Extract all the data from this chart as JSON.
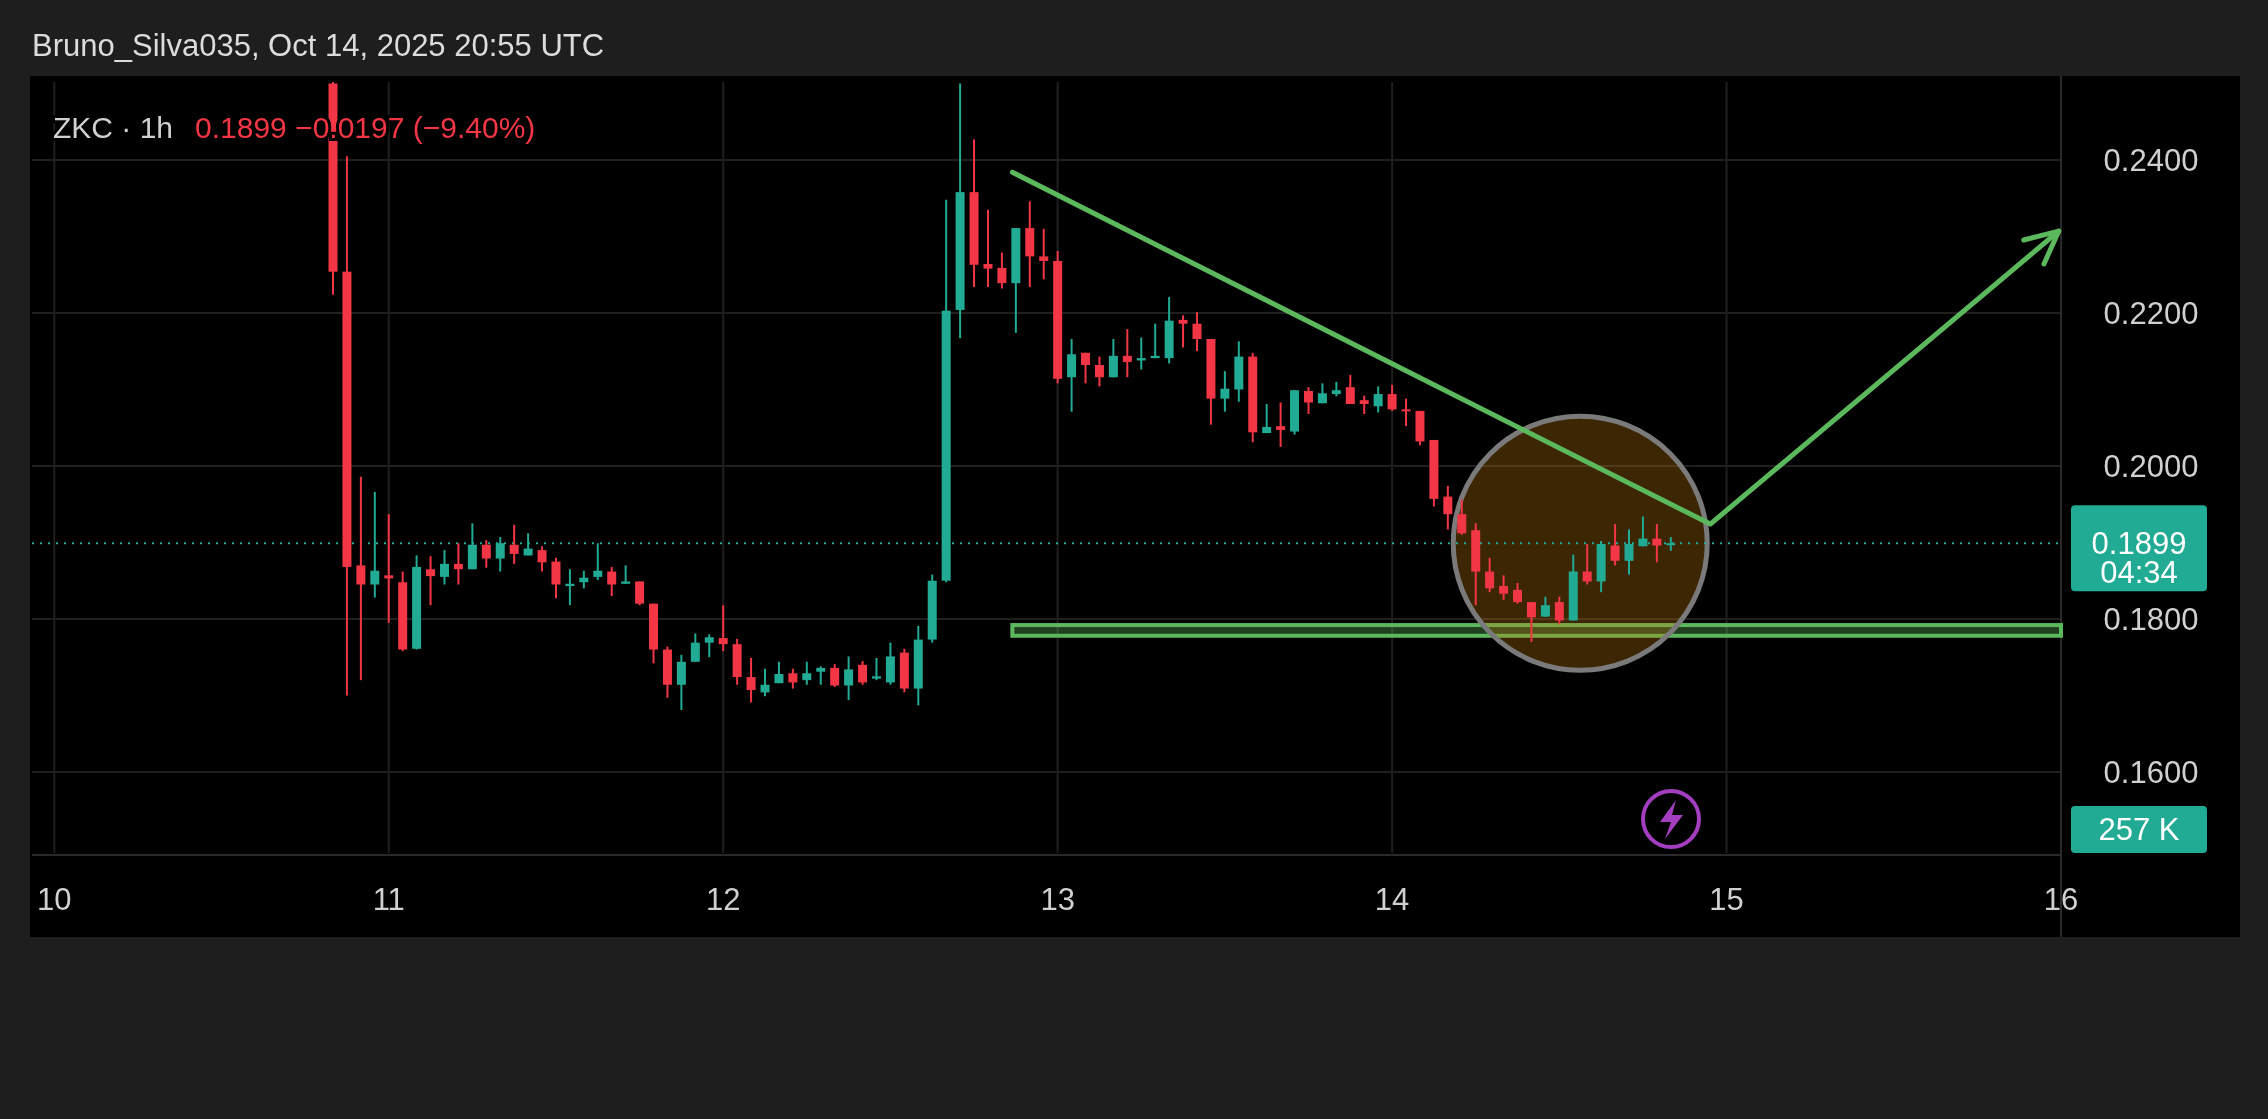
{
  "chart_data": {
    "type": "candlestick",
    "title": "ZKC · 1h",
    "subtitle": "0.1899  −0.0197 (−9.40%)",
    "annotations": [
      "Bruno_Silva035, Oct 14, 2025 20:55 UTC",
      "04:34",
      "257 K"
    ],
    "xlim": [
      "2025-10-09T22:24",
      "2025-10-16T00:00"
    ],
    "xticks": [
      {
        "value": "2025-10-10",
        "label": "10"
      },
      {
        "value": "2025-10-11",
        "label": "11"
      },
      {
        "value": "2025-10-12",
        "label": "12"
      },
      {
        "value": "2025-10-13",
        "label": "13"
      },
      {
        "value": "2025-10-14",
        "label": "14"
      },
      {
        "value": "2025-10-15",
        "label": "15"
      },
      {
        "value": "2025-10-16",
        "label": "16"
      }
    ],
    "ylim": [
      0.1494,
      0.2502
    ],
    "yticks": [
      {
        "value": 0.16,
        "label": "0.1600"
      },
      {
        "value": 0.18,
        "label": "0.1800"
      },
      {
        "value": 0.2,
        "label": "0.2000"
      },
      {
        "value": 0.22,
        "label": "0.2200"
      },
      {
        "value": 0.24,
        "label": "0.2400"
      }
    ],
    "grid": true,
    "ref_lines": [
      {
        "axis": "y",
        "value": 0.1899,
        "label": "0.1899",
        "color": "#22ab94",
        "line_style": "dotted"
      }
    ],
    "bands": [
      {
        "axis": "y",
        "from": 0.1778,
        "to": 0.1792,
        "color": "#5cb85c"
      }
    ],
    "series": [
      {
        "x": [
          "2025-10-10T20:00",
          "2025-10-10T21:00",
          "2025-10-10T22:00",
          "2025-10-10T23:00",
          "2025-10-11T00:00",
          "2025-10-11T01:00",
          "2025-10-11T02:00",
          "2025-10-11T03:00",
          "2025-10-11T04:00",
          "2025-10-11T05:00",
          "2025-10-11T06:00",
          "2025-10-11T07:00",
          "2025-10-11T08:00",
          "2025-10-11T09:00",
          "2025-10-11T10:00",
          "2025-10-11T11:00",
          "2025-10-11T12:00",
          "2025-10-11T13:00",
          "2025-10-11T14:00",
          "2025-10-11T15:00",
          "2025-10-11T16:00",
          "2025-10-11T17:00",
          "2025-10-11T18:00",
          "2025-10-11T19:00",
          "2025-10-11T20:00",
          "2025-10-11T21:00",
          "2025-10-11T22:00",
          "2025-10-11T23:00",
          "2025-10-12T00:00",
          "2025-10-12T01:00",
          "2025-10-12T02:00",
          "2025-10-12T03:00",
          "2025-10-12T04:00",
          "2025-10-12T05:00",
          "2025-10-12T06:00",
          "2025-10-12T07:00",
          "2025-10-12T08:00",
          "2025-10-12T09:00",
          "2025-10-12T10:00",
          "2025-10-12T11:00",
          "2025-10-12T12:00",
          "2025-10-12T13:00",
          "2025-10-12T14:00",
          "2025-10-12T15:00",
          "2025-10-12T16:00",
          "2025-10-12T17:00",
          "2025-10-12T18:00",
          "2025-10-12T19:00",
          "2025-10-12T20:00",
          "2025-10-12T21:00",
          "2025-10-12T22:00",
          "2025-10-12T23:00",
          "2025-10-13T00:00",
          "2025-10-13T01:00",
          "2025-10-13T02:00",
          "2025-10-13T03:00",
          "2025-10-13T04:00",
          "2025-10-13T05:00",
          "2025-10-13T06:00",
          "2025-10-13T07:00",
          "2025-10-13T08:00",
          "2025-10-13T09:00",
          "2025-10-13T10:00",
          "2025-10-13T11:00",
          "2025-10-13T12:00",
          "2025-10-13T13:00",
          "2025-10-13T14:00",
          "2025-10-13T15:00",
          "2025-10-13T16:00",
          "2025-10-13T17:00",
          "2025-10-13T18:00",
          "2025-10-13T19:00",
          "2025-10-13T20:00",
          "2025-10-13T21:00",
          "2025-10-13T22:00",
          "2025-10-13T23:00",
          "2025-10-14T00:00",
          "2025-10-14T01:00",
          "2025-10-14T02:00",
          "2025-10-14T03:00",
          "2025-10-14T04:00",
          "2025-10-14T05:00",
          "2025-10-14T06:00",
          "2025-10-14T07:00",
          "2025-10-14T08:00",
          "2025-10-14T09:00",
          "2025-10-14T10:00",
          "2025-10-14T11:00",
          "2025-10-14T12:00",
          "2025-10-14T13:00",
          "2025-10-14T14:00",
          "2025-10-14T15:00",
          "2025-10-14T16:00",
          "2025-10-14T17:00",
          "2025-10-14T18:00",
          "2025-10-14T19:00",
          "2025-10-14T20:00"
        ],
        "ohlc": [
          [
            0.25,
            0.2502,
            0.2224,
            0.2254
          ],
          [
            0.2254,
            0.2405,
            0.17,
            0.1868
          ],
          [
            0.187,
            0.1986,
            0.172,
            0.1845
          ],
          [
            0.1845,
            0.1966,
            0.1828,
            0.1863
          ],
          [
            0.1857,
            0.1937,
            0.1795,
            0.1853
          ],
          [
            0.1848,
            0.1862,
            0.1758,
            0.176
          ],
          [
            0.1761,
            0.1883,
            0.176,
            0.1868
          ],
          [
            0.1865,
            0.1882,
            0.1818,
            0.1856
          ],
          [
            0.1855,
            0.189,
            0.1845,
            0.1872
          ],
          [
            0.1872,
            0.1899,
            0.1845,
            0.1865
          ],
          [
            0.1865,
            0.1925,
            0.1865,
            0.1897
          ],
          [
            0.1897,
            0.1903,
            0.1867,
            0.1879
          ],
          [
            0.1879,
            0.1907,
            0.1862,
            0.1899
          ],
          [
            0.1897,
            0.1923,
            0.1872,
            0.1885
          ],
          [
            0.1883,
            0.1912,
            0.1883,
            0.1892
          ],
          [
            0.189,
            0.1895,
            0.1862,
            0.1874
          ],
          [
            0.1875,
            0.188,
            0.1827,
            0.1845
          ],
          [
            0.1843,
            0.1865,
            0.1818,
            0.1846
          ],
          [
            0.1848,
            0.1863,
            0.184,
            0.1854
          ],
          [
            0.1855,
            0.1899,
            0.1851,
            0.1863
          ],
          [
            0.1862,
            0.1868,
            0.183,
            0.1845
          ],
          [
            0.1846,
            0.187,
            0.1846,
            0.1849
          ],
          [
            0.1849,
            0.1849,
            0.1818,
            0.182
          ],
          [
            0.182,
            0.182,
            0.1742,
            0.176
          ],
          [
            0.176,
            0.1764,
            0.1697,
            0.1714
          ],
          [
            0.1714,
            0.1753,
            0.1681,
            0.1744
          ],
          [
            0.1744,
            0.1781,
            0.1744,
            0.1769
          ],
          [
            0.1769,
            0.178,
            0.175,
            0.1776
          ],
          [
            0.1775,
            0.1818,
            0.1758,
            0.1767
          ],
          [
            0.1767,
            0.1774,
            0.1714,
            0.1724
          ],
          [
            0.1724,
            0.1749,
            0.1691,
            0.1707
          ],
          [
            0.1704,
            0.1735,
            0.1699,
            0.1714
          ],
          [
            0.1716,
            0.1744,
            0.1716,
            0.1728
          ],
          [
            0.1729,
            0.1735,
            0.1709,
            0.1717
          ],
          [
            0.172,
            0.1744,
            0.1714,
            0.1729
          ],
          [
            0.1731,
            0.1738,
            0.1714,
            0.1736
          ],
          [
            0.1736,
            0.1741,
            0.1711,
            0.1713
          ],
          [
            0.1713,
            0.1751,
            0.1694,
            0.1734
          ],
          [
            0.174,
            0.1745,
            0.1714,
            0.1717
          ],
          [
            0.1722,
            0.1749,
            0.172,
            0.1725
          ],
          [
            0.1717,
            0.1769,
            0.1714,
            0.1751
          ],
          [
            0.1756,
            0.1761,
            0.1704,
            0.1709
          ],
          [
            0.1709,
            0.1791,
            0.1687,
            0.1773
          ],
          [
            0.1773,
            0.1858,
            0.1769,
            0.185
          ],
          [
            0.185,
            0.2348,
            0.1848,
            0.2203
          ],
          [
            0.2204,
            0.25,
            0.2167,
            0.2358
          ],
          [
            0.2358,
            0.2427,
            0.2234,
            0.2263
          ],
          [
            0.2264,
            0.2335,
            0.2234,
            0.2258
          ],
          [
            0.2259,
            0.2279,
            0.2232,
            0.2239
          ],
          [
            0.2239,
            0.2311,
            0.2174,
            0.2311
          ],
          [
            0.2311,
            0.2346,
            0.2234,
            0.2274
          ],
          [
            0.2274,
            0.231,
            0.2244,
            0.2268
          ],
          [
            0.2268,
            0.2281,
            0.2108,
            0.2114
          ],
          [
            0.2116,
            0.2166,
            0.2071,
            0.2146
          ],
          [
            0.2148,
            0.2148,
            0.2108,
            0.2132
          ],
          [
            0.2132,
            0.2143,
            0.2104,
            0.2116
          ],
          [
            0.2116,
            0.2166,
            0.2116,
            0.2144
          ],
          [
            0.2144,
            0.2179,
            0.2116,
            0.2136
          ],
          [
            0.2138,
            0.2168,
            0.2126,
            0.2141
          ],
          [
            0.2141,
            0.2186,
            0.2141,
            0.2144
          ],
          [
            0.2141,
            0.2221,
            0.2134,
            0.219
          ],
          [
            0.2191,
            0.2197,
            0.2155,
            0.2186
          ],
          [
            0.2186,
            0.2201,
            0.215,
            0.2166
          ],
          [
            0.2166,
            0.2166,
            0.2054,
            0.2088
          ],
          [
            0.2088,
            0.2124,
            0.2071,
            0.2101
          ],
          [
            0.21,
            0.2163,
            0.2084,
            0.2143
          ],
          [
            0.2143,
            0.2148,
            0.2031,
            0.2044
          ],
          [
            0.2043,
            0.2081,
            0.2043,
            0.2051
          ],
          [
            0.2052,
            0.2083,
            0.2025,
            0.2047
          ],
          [
            0.2045,
            0.2099,
            0.2041,
            0.2099
          ],
          [
            0.2098,
            0.2103,
            0.2068,
            0.2083
          ],
          [
            0.2082,
            0.2108,
            0.2082,
            0.2095
          ],
          [
            0.2094,
            0.211,
            0.2091,
            0.2099
          ],
          [
            0.2103,
            0.2119,
            0.2081,
            0.2081
          ],
          [
            0.2086,
            0.2092,
            0.2068,
            0.2081
          ],
          [
            0.2078,
            0.2104,
            0.207,
            0.2094
          ],
          [
            0.2094,
            0.2106,
            0.2072,
            0.2074
          ],
          [
            0.2074,
            0.2088,
            0.2052,
            0.2072
          ],
          [
            0.2072,
            0.2072,
            0.2027,
            0.2032
          ],
          [
            0.2034,
            0.2034,
            0.1947,
            0.1957
          ],
          [
            0.196,
            0.1974,
            0.1917,
            0.1937
          ],
          [
            0.1937,
            0.1956,
            0.191,
            0.1912
          ],
          [
            0.1916,
            0.1925,
            0.1818,
            0.1862
          ],
          [
            0.1862,
            0.188,
            0.1835,
            0.184
          ],
          [
            0.1843,
            0.1857,
            0.1825,
            0.1833
          ],
          [
            0.1838,
            0.1847,
            0.182,
            0.1822
          ],
          [
            0.1822,
            0.1822,
            0.177,
            0.1802
          ],
          [
            0.1803,
            0.1829,
            0.1803,
            0.1818
          ],
          [
            0.1822,
            0.1829,
            0.1793,
            0.1798
          ],
          [
            0.1798,
            0.1884,
            0.1798,
            0.1862
          ],
          [
            0.1862,
            0.1898,
            0.1845,
            0.1849
          ],
          [
            0.1849,
            0.1902,
            0.1835,
            0.1898
          ],
          [
            0.1896,
            0.1924,
            0.187,
            0.1876
          ],
          [
            0.1876,
            0.1917,
            0.1858,
            0.1898
          ],
          [
            0.1895,
            0.1934,
            0.1895,
            0.1905
          ],
          [
            0.1905,
            0.1924,
            0.1874,
            0.1896
          ],
          [
            0.1898,
            0.1907,
            0.1889,
            0.1899
          ]
        ]
      },
      {
        "type": "line",
        "color": "#5cb85c",
        "x": [
          "2025-10-12T20:45",
          "2025-10-14T22:50",
          "2025-10-15T23:50"
        ],
        "values": [
          0.2384,
          0.1924,
          0.2307
        ]
      }
    ]
  }
}
